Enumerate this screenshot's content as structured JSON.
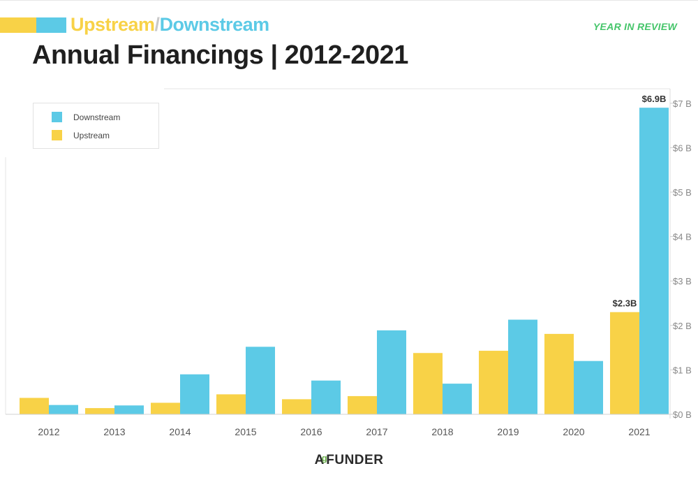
{
  "header": {
    "upstream_word": "Upstream",
    "separator": "/",
    "downstream_word": "Downstream",
    "year_in_review": "YEAR IN REVIEW",
    "title": "Annual Financings | 2012-2021"
  },
  "colors": {
    "upstream": "#f8d247",
    "downstream": "#5ccae6",
    "year_in_review": "#45c56a"
  },
  "chart_data": {
    "type": "bar",
    "categories": [
      "2012",
      "2013",
      "2014",
      "2015",
      "2016",
      "2017",
      "2018",
      "2019",
      "2020",
      "2021"
    ],
    "series": [
      {
        "name": "Upstream",
        "color": "#f8d247",
        "values": [
          0.37,
          0.14,
          0.26,
          0.45,
          0.34,
          0.41,
          1.38,
          1.43,
          1.81,
          2.3
        ]
      },
      {
        "name": "Downstream",
        "color": "#5ccae6",
        "values": [
          0.21,
          0.2,
          0.9,
          1.52,
          0.76,
          1.89,
          0.69,
          2.13,
          1.2,
          6.9
        ]
      }
    ],
    "data_labels": [
      {
        "series": "Upstream",
        "category": "2021",
        "text": "$2.3B"
      },
      {
        "series": "Downstream",
        "category": "2021",
        "text": "$6.9B"
      }
    ],
    "yticks": [
      "$0 B",
      "$1 B",
      "$2 B",
      "$3 B",
      "$4 B",
      "$5 B",
      "$6 B",
      "$7 B"
    ],
    "ylim": [
      0,
      7.3
    ],
    "y_axis_position": "right",
    "legend": {
      "position": "top-left",
      "entries": [
        {
          "label": "Downstream",
          "color": "#5ccae6"
        },
        {
          "label": "Upstream",
          "color": "#f8d247"
        }
      ]
    },
    "grid": false
  },
  "footer": {
    "logo_text_a": "A",
    "logo_text_b": "FUNDER",
    "logo_leaf": "g"
  }
}
